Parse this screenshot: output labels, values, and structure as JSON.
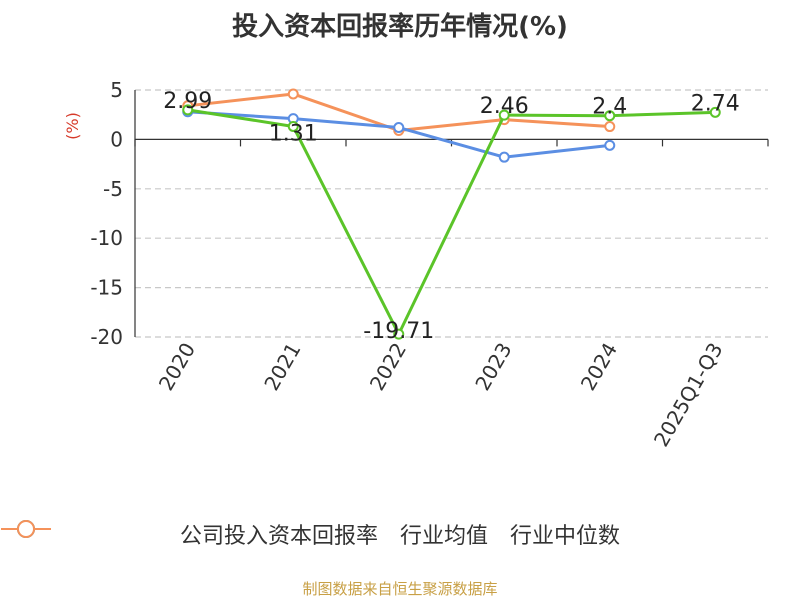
{
  "title": "投入资本回报率历年情况(%)",
  "chart_data": {
    "type": "line",
    "categories": [
      "2020",
      "2021",
      "2022",
      "2023",
      "2024",
      "2025Q1-Q3"
    ],
    "ylabel": "(%)",
    "ylim": [
      -20,
      5
    ],
    "yticks": [
      5,
      0,
      -5,
      -10,
      -15,
      -20
    ],
    "grid": true,
    "legend_position": "bottom",
    "series": [
      {
        "name": "公司投入资本回报率",
        "color": "#5bc429",
        "values": [
          2.99,
          1.31,
          -19.71,
          2.46,
          2.4,
          2.74
        ],
        "labels": [
          "2.99",
          "1.31",
          "-19.71",
          "2.46",
          "2.4",
          "2.74"
        ]
      },
      {
        "name": "行业均值",
        "color": "#5b8ee3",
        "values": [
          2.8,
          2.1,
          1.2,
          -1.8,
          -0.6,
          null
        ]
      },
      {
        "name": "行业中位数",
        "color": "#f5925a",
        "values": [
          3.4,
          4.6,
          0.9,
          2.0,
          1.3,
          null
        ]
      }
    ]
  },
  "watermark": "制图数据来自恒生聚源数据库"
}
